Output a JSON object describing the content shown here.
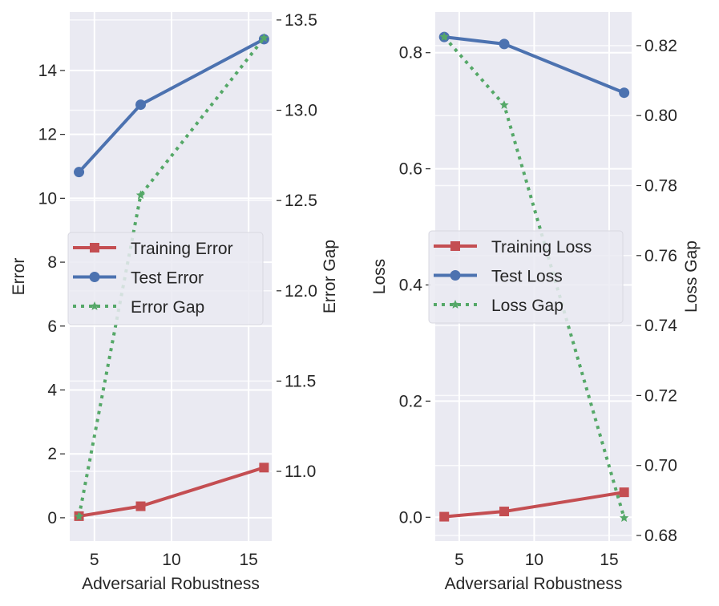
{
  "chart_data": [
    {
      "type": "line",
      "xlabel": "Adversarial Robustness",
      "ylabel": "Error",
      "ylabel_right": "Error Gap",
      "x": [
        4,
        8,
        16
      ],
      "xlim": [
        3.4,
        16.5
      ],
      "ylim": [
        -0.73,
        15.83
      ],
      "ylim_right": [
        10.614,
        13.544
      ],
      "xticks": [
        5,
        10,
        15
      ],
      "xtick_labels": [
        "5",
        "10",
        "15"
      ],
      "yticks": [
        0,
        2,
        4,
        6,
        8,
        10,
        12,
        14
      ],
      "ytick_labels": [
        "0",
        "2",
        "4",
        "6",
        "8",
        "10",
        "12",
        "14"
      ],
      "yticks_right": [
        11.0,
        11.5,
        12.0,
        12.5,
        13.0,
        13.5
      ],
      "ytick_labels_right": [
        "11.0",
        "11.5",
        "12.0",
        "12.5",
        "13.0",
        "13.5"
      ],
      "grid": true,
      "legend_position": "center-left",
      "series": [
        {
          "name": "Training Error",
          "axis": "left",
          "color": "#c44e52",
          "marker": "square",
          "style": "solid",
          "values": [
            0.05,
            0.36,
            1.57
          ]
        },
        {
          "name": "Test Error",
          "axis": "left",
          "color": "#4c72b0",
          "marker": "circle",
          "style": "solid",
          "values": [
            10.82,
            12.93,
            14.98
          ]
        },
        {
          "name": "Error Gap",
          "axis": "right",
          "color": "#55a868",
          "marker": "star",
          "style": "dotted",
          "values": [
            10.75,
            12.53,
            13.4
          ]
        }
      ]
    },
    {
      "type": "line",
      "xlabel": "Adversarial Robustness",
      "ylabel": "Loss",
      "ylabel_right": "Loss Gap",
      "x": [
        4,
        8,
        16
      ],
      "xlim": [
        3.4,
        16.5
      ],
      "ylim": [
        -0.041,
        0.87
      ],
      "ylim_right": [
        0.6784,
        0.8296
      ],
      "xticks": [
        5,
        10,
        15
      ],
      "xtick_labels": [
        "5",
        "10",
        "15"
      ],
      "yticks": [
        0.0,
        0.2,
        0.4,
        0.6,
        0.8
      ],
      "ytick_labels": [
        "0.0",
        "0.2",
        "0.4",
        "0.6",
        "0.8"
      ],
      "yticks_right": [
        0.68,
        0.7,
        0.72,
        0.74,
        0.76,
        0.78,
        0.8,
        0.82
      ],
      "ytick_labels_right": [
        "0.68",
        "0.70",
        "0.72",
        "0.74",
        "0.76",
        "0.78",
        "0.80",
        "0.82"
      ],
      "grid": true,
      "legend_position": "center-left",
      "series": [
        {
          "name": "Training Loss",
          "axis": "left",
          "color": "#c44e52",
          "marker": "square",
          "style": "solid",
          "values": [
            0.001,
            0.01,
            0.043
          ]
        },
        {
          "name": "Test Loss",
          "axis": "left",
          "color": "#4c72b0",
          "marker": "circle",
          "style": "solid",
          "values": [
            0.827,
            0.815,
            0.731
          ]
        },
        {
          "name": "Loss Gap",
          "axis": "right",
          "color": "#55a868",
          "marker": "star",
          "style": "dotted",
          "values": [
            0.8225,
            0.803,
            0.685
          ]
        }
      ]
    }
  ]
}
